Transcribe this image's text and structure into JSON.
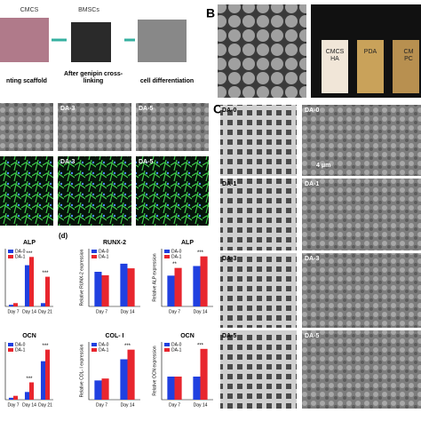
{
  "panel_a": {
    "materials": [
      "CMCS",
      "BMSCs"
    ],
    "steps": [
      "nting scaffold",
      "After genipin cross-linking",
      "cell differentiation"
    ]
  },
  "panel_b": {
    "letter": "B",
    "vials": [
      "CMCS HA",
      "PDA",
      "CM PC"
    ]
  },
  "micrographs": {
    "sem": [
      "DA-3",
      "DA-5"
    ],
    "fluorescence": [
      "DA-3",
      "DA-5"
    ]
  },
  "panel_c": {
    "letter": "C",
    "photos": [
      "DA-0",
      "DA-1",
      "DA-3",
      "DA-5"
    ],
    "sem": [
      "DA-0",
      "DA-1",
      "DA-3",
      "DA-5"
    ],
    "scale": "4 μm"
  },
  "panel_d": {
    "letter": "(d)"
  },
  "charts": [
    {
      "title": "ALP",
      "categories": [
        "Day 7",
        "Day 14",
        "Day 21"
      ],
      "ylim": [
        0,
        3.5
      ],
      "series": [
        {
          "name": "DA-0",
          "color": "#2040e0",
          "values": [
            0.1,
            2.5,
            0.2
          ]
        },
        {
          "name": "DA-1",
          "color": "#e8262e",
          "values": [
            0.2,
            3.0,
            1.8
          ]
        }
      ],
      "significance": [
        null,
        "***",
        "***"
      ]
    },
    {
      "title": "OCN",
      "categories": [
        "Day 7",
        "Day 14",
        "Day 21"
      ],
      "ylim": [
        0,
        3
      ],
      "series": [
        {
          "name": "DA-0",
          "color": "#2040e0",
          "values": [
            0.1,
            0.4,
            2.0
          ]
        },
        {
          "name": "DA-1",
          "color": "#e8262e",
          "values": [
            0.2,
            0.9,
            2.6
          ]
        }
      ],
      "significance": [
        null,
        "***",
        "***"
      ]
    },
    {
      "title": "RUNX-2",
      "ylabel": "Relative RUNX-2 expression",
      "categories": [
        "Day 7",
        "Day 14"
      ],
      "ylim": [
        0,
        2.5
      ],
      "series": [
        {
          "name": "DA-0",
          "color": "#2040e0",
          "values": [
            1.5,
            1.85
          ]
        },
        {
          "name": "DA-1",
          "color": "#e8262e",
          "values": [
            1.35,
            1.65
          ]
        }
      ],
      "significance": [
        null,
        null
      ]
    },
    {
      "title": "ALP",
      "ylabel": "Relative ALP expression",
      "categories": [
        "Day 7",
        "Day 14"
      ],
      "ylim": [
        0,
        3
      ],
      "series": [
        {
          "name": "DA-0",
          "color": "#2040e0",
          "values": [
            1.6,
            2.1
          ]
        },
        {
          "name": "DA-1",
          "color": "#e8262e",
          "values": [
            2.0,
            2.6
          ]
        }
      ],
      "significance": [
        "**",
        "***"
      ]
    },
    {
      "title": "COL- I",
      "ylabel": "Relative COL- I expression",
      "categories": [
        "Day 7",
        "Day 14"
      ],
      "ylim": [
        0,
        3
      ],
      "series": [
        {
          "name": "DA-0",
          "color": "#2040e0",
          "values": [
            1.0,
            2.1
          ]
        },
        {
          "name": "DA-1",
          "color": "#e8262e",
          "values": [
            1.1,
            2.6
          ]
        }
      ],
      "significance": [
        null,
        "***"
      ]
    },
    {
      "title": "OCN",
      "ylabel": "Relative OCN expression",
      "categories": [
        "Day 7",
        "Day 14"
      ],
      "ylim": [
        0,
        2.5
      ],
      "series": [
        {
          "name": "DA-0",
          "color": "#2040e0",
          "values": [
            1.0,
            1.0
          ]
        },
        {
          "name": "DA-1",
          "color": "#e8262e",
          "values": [
            1.0,
            2.2
          ]
        }
      ],
      "significance": [
        null,
        "***"
      ]
    }
  ]
}
